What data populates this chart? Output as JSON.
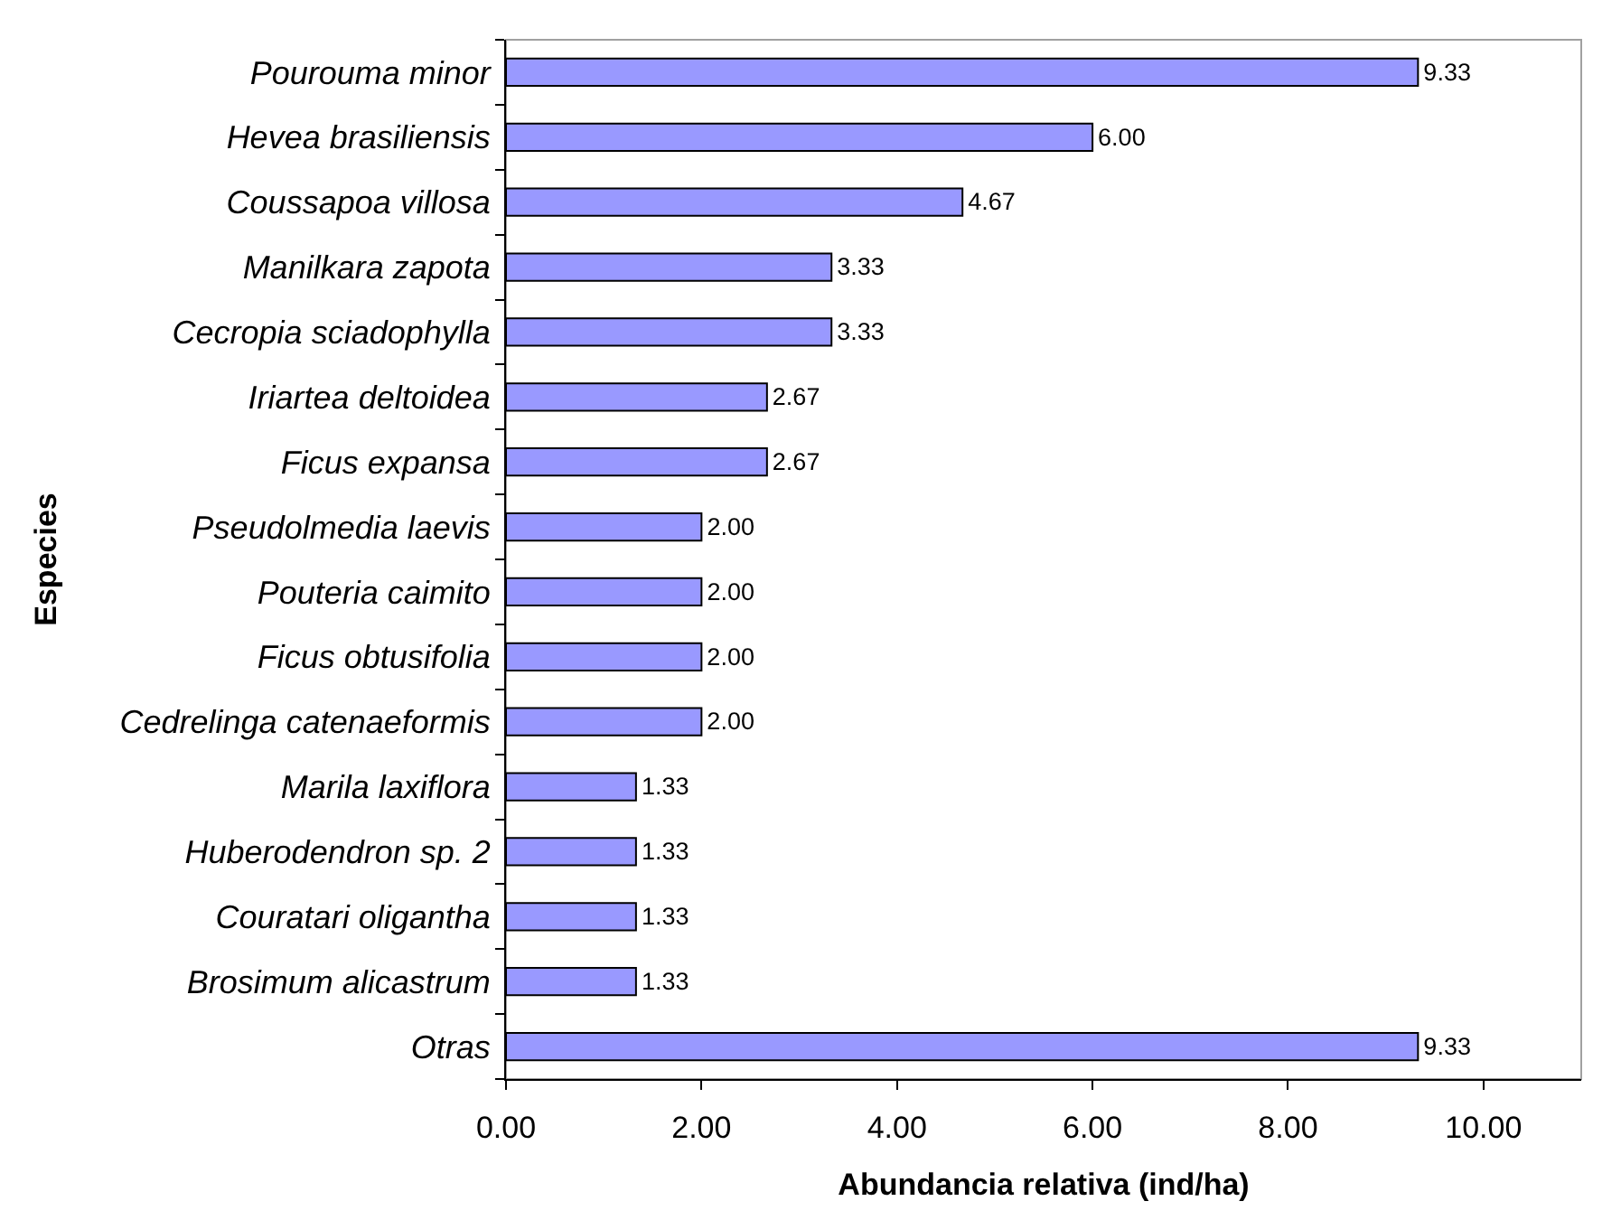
{
  "chart_data": {
    "type": "bar",
    "orientation": "horizontal",
    "xlabel": "Abundancia relativa (ind/ha)",
    "ylabel": "Especies",
    "categories": [
      "Pourouma minor",
      "Hevea brasiliensis",
      "Coussapoa villosa",
      "Manilkara zapota",
      "Cecropia sciadophylla",
      "Iriartea deltoidea",
      "Ficus expansa",
      "Pseudolmedia laevis",
      "Pouteria caimito",
      "Ficus obtusifolia",
      "Cedrelinga catenaeformis",
      "Marila laxiflora",
      "Huberodendron sp. 2",
      "Couratari oligantha",
      "Brosimum alicastrum",
      "Otras"
    ],
    "values": [
      9.33,
      6.0,
      4.67,
      3.33,
      3.33,
      2.67,
      2.67,
      2.0,
      2.0,
      2.0,
      2.0,
      1.33,
      1.33,
      1.33,
      1.33,
      9.33
    ],
    "value_labels": [
      "9.33",
      "6.00",
      "4.67",
      "3.33",
      "3.33",
      "2.67",
      "2.67",
      "2.00",
      "2.00",
      "2.00",
      "2.00",
      "1.33",
      "1.33",
      "1.33",
      "1.33",
      "9.33"
    ],
    "color": "#9999ff",
    "xlim": [
      0,
      11
    ],
    "xticks": [
      {
        "value": 0,
        "label": "0.00"
      },
      {
        "value": 2,
        "label": "2.00"
      },
      {
        "value": 4,
        "label": "4.00"
      },
      {
        "value": 6,
        "label": "6.00"
      },
      {
        "value": 8,
        "label": "8.00"
      },
      {
        "value": 10,
        "label": "10.00"
      }
    ]
  }
}
